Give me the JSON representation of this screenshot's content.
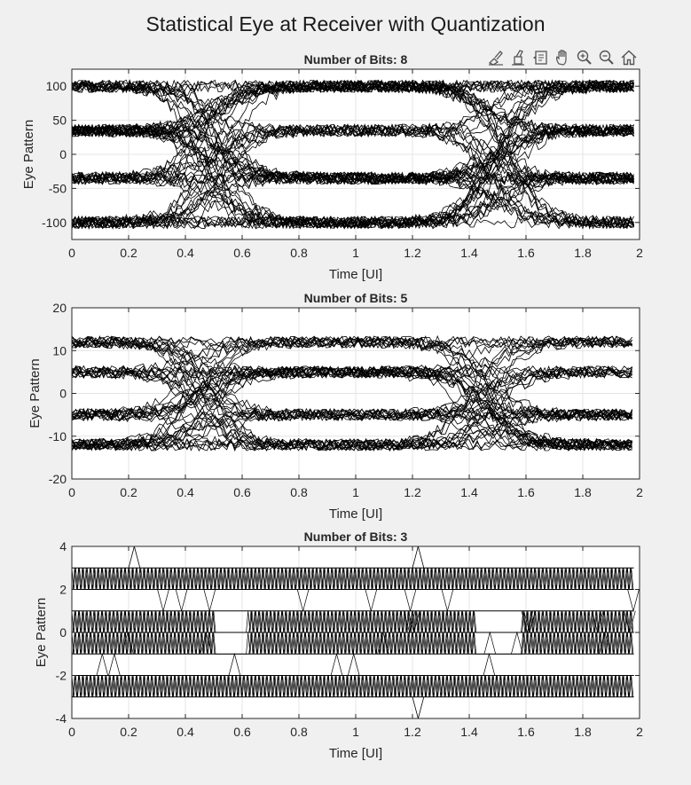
{
  "figure_title": "Statistical Eye at Receiver with Quantization",
  "toolbar": [
    {
      "icon": "brush-icon"
    },
    {
      "icon": "databrush-icon"
    },
    {
      "icon": "datatip-icon"
    },
    {
      "icon": "pan-hand-icon"
    },
    {
      "icon": "zoom-in-icon"
    },
    {
      "icon": "zoom-out-icon"
    },
    {
      "icon": "home-icon"
    }
  ],
  "colors": {
    "trace": "#000000",
    "axes_bg": "#ffffff",
    "figure_bg": "#f0f0f0",
    "grid": "#e4e4e4"
  },
  "chart_data": [
    {
      "type": "line",
      "title": "Number of Bits: 8",
      "xlabel": "Time [UI]",
      "ylabel": "Eye Pattern",
      "xlim": [
        0,
        2
      ],
      "ylim": [
        -125,
        125
      ],
      "xticks": [
        0,
        0.2,
        0.4,
        0.6,
        0.8,
        1,
        1.2,
        1.4,
        1.6,
        1.8,
        2
      ],
      "xtick_labels": [
        "0",
        "0.2",
        "0.4",
        "0.6",
        "0.8",
        "1",
        "1.2",
        "1.4",
        "1.6",
        "1.8",
        "2"
      ],
      "yticks": [
        -100,
        -50,
        0,
        50,
        100
      ],
      "ytick_labels": [
        "-100",
        "-50",
        "0",
        "50",
        "100"
      ],
      "grid": true,
      "levels": [
        -100,
        -35,
        35,
        100
      ],
      "crossing_times": [
        0.5,
        1.5
      ],
      "data_x_range": [
        0,
        1.98
      ],
      "noise": 9
    },
    {
      "type": "line",
      "title": "Number of Bits: 5",
      "xlabel": "Time [UI]",
      "ylabel": "Eye Pattern",
      "xlim": [
        0,
        2
      ],
      "ylim": [
        -20,
        20
      ],
      "xticks": [
        0,
        0.2,
        0.4,
        0.6,
        0.8,
        1,
        1.2,
        1.4,
        1.6,
        1.8,
        2
      ],
      "xtick_labels": [
        "0",
        "0.2",
        "0.4",
        "0.6",
        "0.8",
        "1",
        "1.2",
        "1.4",
        "1.6",
        "1.8",
        "2"
      ],
      "yticks": [
        -20,
        -10,
        0,
        10,
        20
      ],
      "ytick_labels": [
        "-20",
        "-10",
        "0",
        "10",
        "20"
      ],
      "grid": true,
      "levels": [
        -12,
        -5,
        5,
        12
      ],
      "crossing_times": [
        0.45,
        1.45
      ],
      "data_x_range": [
        0,
        1.98
      ],
      "noise": 1.4
    },
    {
      "type": "line",
      "title": "Number of Bits: 3",
      "xlabel": "Time [UI]",
      "ylabel": "Eye Pattern",
      "xlim": [
        0,
        2
      ],
      "ylim": [
        -4,
        4
      ],
      "xticks": [
        0,
        0.2,
        0.4,
        0.6,
        0.8,
        1,
        1.2,
        1.4,
        1.6,
        1.8,
        2
      ],
      "xtick_labels": [
        "0",
        "0.2",
        "0.4",
        "0.6",
        "0.8",
        "1",
        "1.2",
        "1.4",
        "1.6",
        "1.8",
        "2"
      ],
      "yticks": [
        -4,
        -2,
        0,
        2,
        4
      ],
      "ytick_labels": [
        "-4",
        "-2",
        "0",
        "2",
        "4"
      ],
      "grid": true,
      "bands": [
        [
          2,
          3
        ],
        [
          0,
          1
        ],
        [
          -1,
          0
        ],
        [
          -3,
          -2
        ]
      ],
      "data_x_range": [
        0,
        1.98
      ]
    }
  ]
}
